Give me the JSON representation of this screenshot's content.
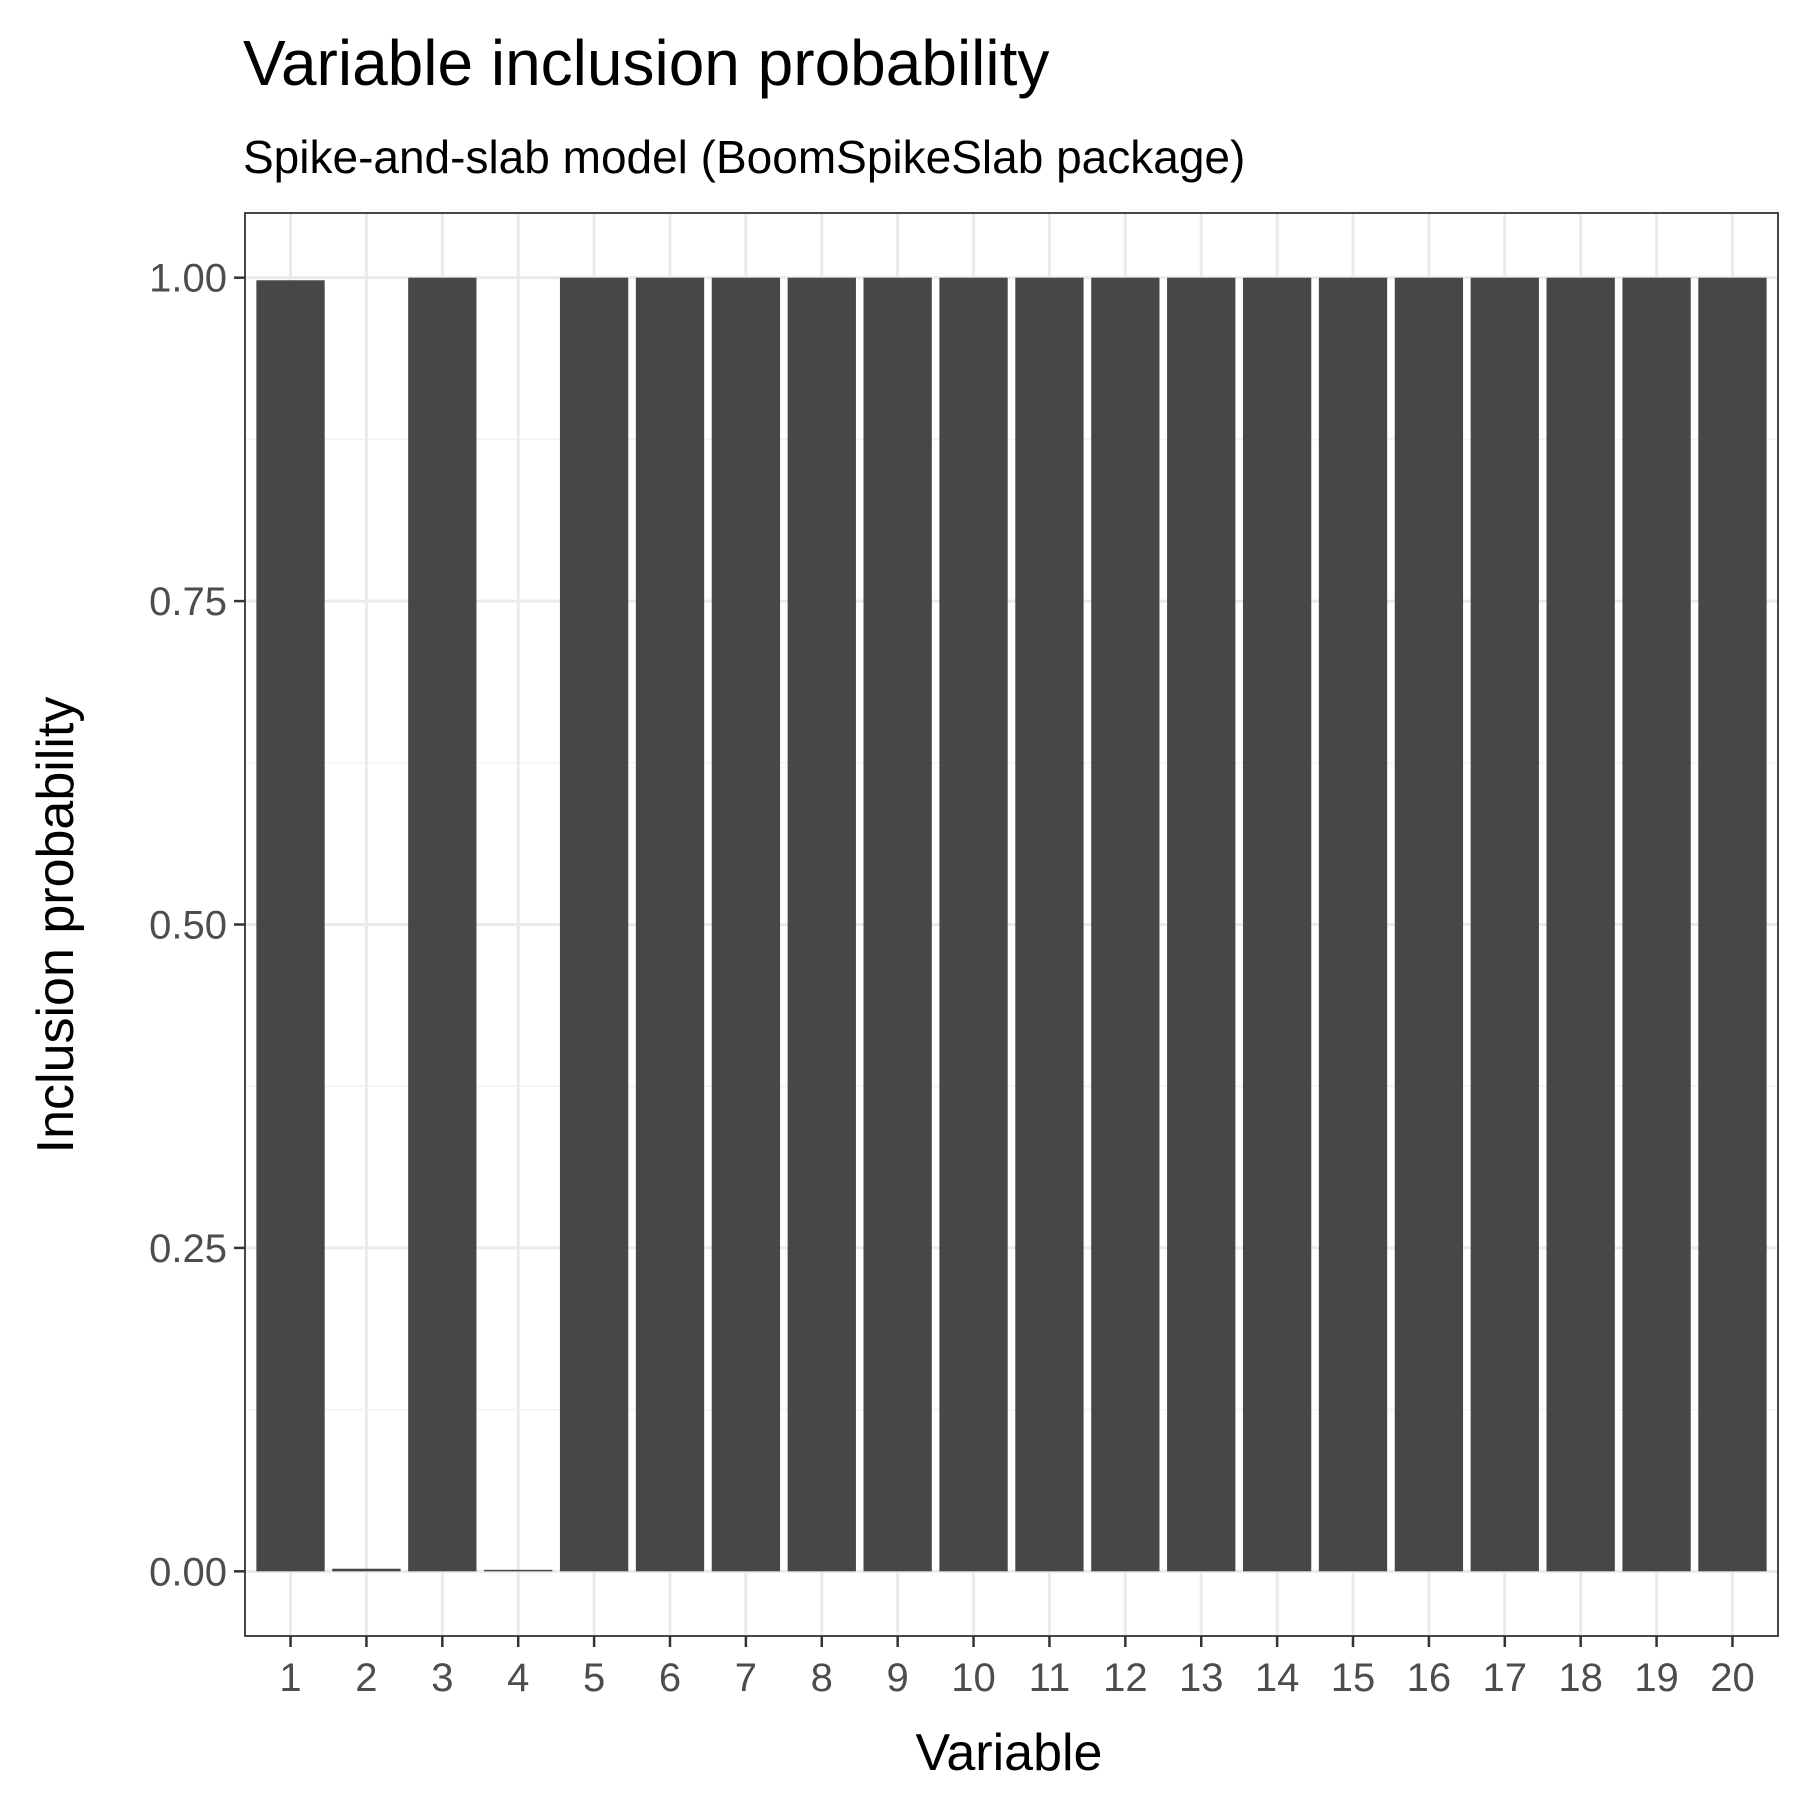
{
  "chart_data": {
    "type": "bar",
    "title": "Variable inclusion probability",
    "subtitle": "Spike-and-slab model (BoomSpikeSlab package)",
    "xlabel": "Variable",
    "ylabel": "Inclusion probability",
    "categories": [
      "1",
      "2",
      "3",
      "4",
      "5",
      "6",
      "7",
      "8",
      "9",
      "10",
      "11",
      "12",
      "13",
      "14",
      "15",
      "16",
      "17",
      "18",
      "19",
      "20"
    ],
    "values": [
      0.998,
      0.002,
      1.0,
      0.001,
      1.0,
      1.0,
      1.0,
      1.0,
      1.0,
      1.0,
      1.0,
      1.0,
      1.0,
      1.0,
      1.0,
      1.0,
      1.0,
      1.0,
      1.0,
      1.0
    ],
    "ylim": [
      -0.05,
      1.05
    ],
    "yticks": [
      0.0,
      0.25,
      0.5,
      0.75,
      1.0
    ],
    "ytick_labels": [
      "0.00",
      "0.25",
      "0.50",
      "0.75",
      "1.00"
    ],
    "grid": true,
    "legend": "none",
    "colors": {
      "bar": "#474747",
      "panel_background": "#ffffff",
      "grid_major": "#ebebeb",
      "grid_minor": "#f3f3f3",
      "panel_border": "#333333",
      "tick_text": "#4d4d4d"
    }
  }
}
